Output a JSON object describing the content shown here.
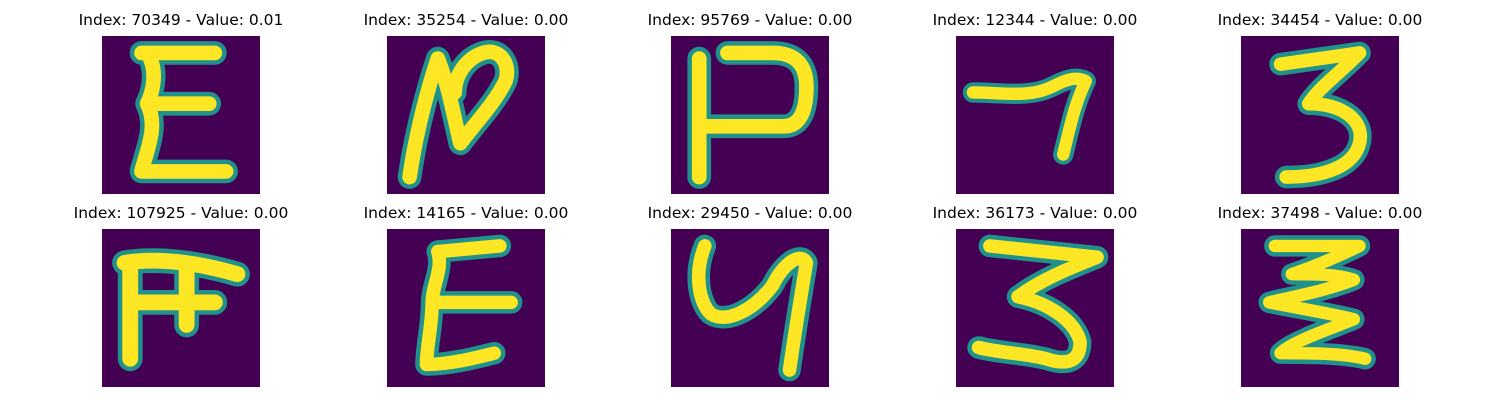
{
  "chart_data": {
    "type": "image-grid",
    "rows": 2,
    "cols": 5,
    "colors": {
      "background": "#440154",
      "stroke": "#fde725",
      "edge": "#21918c"
    },
    "panels": [
      {
        "title": "Index: 70349 - Value: 0.01",
        "index": 70349,
        "value": 0.01,
        "glyph": "Ɛ"
      },
      {
        "title": "Index: 35254 - Value: 0.00",
        "index": 35254,
        "value": 0.0,
        "glyph": "N"
      },
      {
        "title": "Index: 95769 - Value: 0.00",
        "index": 95769,
        "value": 0.0,
        "glyph": "Ⲣ"
      },
      {
        "title": "Index: 12344 - Value: 0.00",
        "index": 12344,
        "value": 0.0,
        "glyph": "7"
      },
      {
        "title": "Index: 34454 - Value: 0.00",
        "index": 34454,
        "value": 0.0,
        "glyph": "3"
      },
      {
        "title": "Index: 107925 - Value: 0.00",
        "index": 107925,
        "value": 0.0,
        "glyph": "F"
      },
      {
        "title": "Index: 14165 - Value: 0.00",
        "index": 14165,
        "value": 0.0,
        "glyph": "Ɛ"
      },
      {
        "title": "Index: 29450 - Value: 0.00",
        "index": 29450,
        "value": 0.0,
        "glyph": "Ч"
      },
      {
        "title": "Index: 36173 - Value: 0.00",
        "index": 36173,
        "value": 0.0,
        "glyph": "3"
      },
      {
        "title": "Index: 37498 - Value: 0.00",
        "index": 37498,
        "value": 0.0,
        "glyph": "Ʒ"
      }
    ]
  }
}
